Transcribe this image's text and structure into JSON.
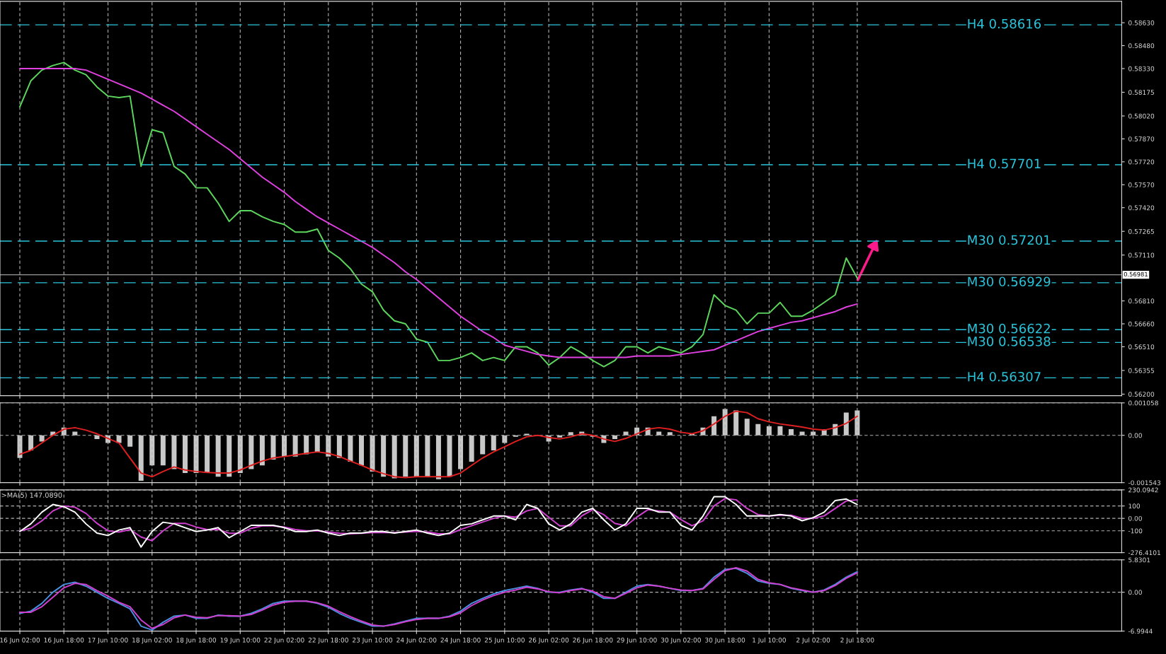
{
  "chart_data": [
    {
      "type": "line",
      "categories": [
        null,
        null,
        null,
        null,
        null,
        null,
        null,
        null,
        null,
        null,
        null,
        null,
        null,
        null,
        null,
        null,
        null,
        null,
        null,
        null,
        null,
        null,
        null,
        null,
        null,
        null,
        null,
        null,
        null,
        null,
        null,
        null,
        null,
        null,
        null,
        null,
        null,
        null,
        null,
        null,
        null,
        null,
        null,
        null,
        null,
        null,
        null,
        null,
        null,
        null,
        null,
        null,
        null,
        null,
        null,
        null,
        null,
        null,
        null,
        null,
        null,
        null,
        null,
        null,
        null,
        null,
        null,
        null,
        null,
        null,
        null,
        null,
        null,
        null,
        null,
        null,
        null
      ],
      "series": [
        {
          "color": "#5cd65c",
          "values": [
            0.5808,
            0.5825,
            0.5832,
            0.5835,
            0.5837,
            0.5832,
            0.5829,
            0.5821,
            0.5815,
            0.5814,
            0.5815,
            0.5769,
            0.5793,
            0.5791,
            0.5769,
            0.5764,
            0.5755,
            0.5755,
            0.5745,
            0.5733,
            0.574,
            0.574,
            0.5736,
            0.5733,
            0.5731,
            0.5726,
            0.5726,
            0.5728,
            0.5714,
            0.5709,
            0.5702,
            0.5692,
            0.5687,
            0.5675,
            0.5668,
            0.5666,
            0.5656,
            0.5654,
            0.5642,
            0.5642,
            0.5644,
            0.5647,
            0.5642,
            0.5644,
            0.5642,
            0.5651,
            0.5651,
            0.5647,
            0.5639,
            0.5644,
            0.5651,
            0.5647,
            0.5642,
            0.5638,
            0.5642,
            0.5651,
            0.5651,
            0.5647,
            0.5651,
            0.5649,
            0.5647,
            0.5651,
            0.5659,
            0.5685,
            0.5678,
            0.5675,
            0.5666,
            0.5673,
            0.5673,
            0.568,
            0.5671,
            0.5671,
            0.5675,
            0.568,
            0.5685,
            0.5709,
            0.5696
          ]
        },
        {
          "color": "#e040e0",
          "values": [
            0.5833,
            0.5833,
            0.5833,
            0.5833,
            0.5833,
            0.5833,
            0.5832,
            0.5829,
            0.5826,
            0.5823,
            0.582,
            0.5817,
            0.5813,
            0.5809,
            0.5805,
            0.58,
            0.5795,
            0.579,
            0.5785,
            0.578,
            0.5774,
            0.5768,
            0.5762,
            0.5757,
            0.5752,
            0.5746,
            0.5741,
            0.5736,
            0.5732,
            0.5728,
            0.5724,
            0.572,
            0.5716,
            0.5711,
            0.5706,
            0.57,
            0.5695,
            0.5689,
            0.5683,
            0.5677,
            0.5671,
            0.5666,
            0.5661,
            0.5657,
            0.5652,
            0.565,
            0.5648,
            0.5646,
            0.5645,
            0.5644,
            0.5644,
            0.5644,
            0.5644,
            0.5644,
            0.5644,
            0.5644,
            0.5645,
            0.5645,
            0.5645,
            0.5645,
            0.5646,
            0.5647,
            0.5648,
            0.5649,
            0.5652,
            0.5655,
            0.5658,
            0.5661,
            0.5663,
            0.5665,
            0.5667,
            0.5668,
            0.567,
            0.5672,
            0.5674,
            0.5677,
            0.5679
          ]
        }
      ],
      "ylim": [
        0.5619,
        0.5877
      ],
      "yticks": [
        {
          "value": 0.5863,
          "label": "0.58630"
        },
        {
          "value": 0.5848,
          "label": "0.58480"
        },
        {
          "value": 0.5833,
          "label": "0.58330"
        },
        {
          "value": 0.58175,
          "label": "0.58175"
        },
        {
          "value": 0.5802,
          "label": "0.58020"
        },
        {
          "value": 0.5787,
          "label": "0.57870"
        },
        {
          "value": 0.5772,
          "label": "0.57720"
        },
        {
          "value": 0.5757,
          "label": "0.57570"
        },
        {
          "value": 0.5742,
          "label": "0.57420"
        },
        {
          "value": 0.57265,
          "label": "0.57265"
        },
        {
          "value": 0.5711,
          "label": "0.57110"
        },
        {
          "value": 0.5681,
          "label": "0.56810"
        },
        {
          "value": 0.5666,
          "label": "0.56660"
        },
        {
          "value": 0.5651,
          "label": "0.56510"
        },
        {
          "value": 0.56355,
          "label": "0.56355"
        },
        {
          "value": 0.562,
          "label": "0.56200"
        }
      ],
      "ref_lines": [
        {
          "axis": "y",
          "value": 0.58616,
          "label": "H4 0.58616",
          "color": "#29c5dc",
          "line_style": "dashed"
        },
        {
          "axis": "y",
          "value": 0.57701,
          "label": "H4 0.57701",
          "color": "#29c5dc",
          "line_style": "dashed"
        },
        {
          "axis": "y",
          "value": 0.57201,
          "label": "M30 0.57201",
          "color": "#29c5dc",
          "line_style": "dashed"
        },
        {
          "axis": "y",
          "value": 0.56929,
          "label": "M30 0.56929",
          "color": "#29c5dc",
          "line_style": "dashed"
        },
        {
          "axis": "y",
          "value": 0.56622,
          "label": "M30 0.56622",
          "color": "#29c5dc",
          "line_style": "dashed"
        },
        {
          "axis": "y",
          "value": 0.56538,
          "label": "M30 0.56538",
          "color": "#29c5dc",
          "line_style": "dashed"
        },
        {
          "axis": "y",
          "value": 0.56307,
          "label": "H4 0.56307",
          "color": "#29c5dc",
          "line_style": "dashed"
        },
        {
          "axis": "y",
          "value": 0.56981,
          "label": "0.56981",
          "color": "#9a9a9a",
          "line_style": "solid"
        }
      ],
      "grid": "x",
      "tick_labels": "y"
    },
    {
      "type": "line",
      "categories": [
        null,
        null,
        null,
        null,
        null,
        null,
        null,
        null,
        null,
        null,
        null,
        null,
        null,
        null,
        null,
        null,
        null,
        null,
        null,
        null,
        null,
        null,
        null,
        null,
        null,
        null,
        null,
        null,
        null,
        null,
        null,
        null,
        null,
        null,
        null,
        null,
        null,
        null,
        null,
        null,
        null,
        null,
        null,
        null,
        null,
        null,
        null,
        null,
        null,
        null,
        null,
        null,
        null,
        null,
        null,
        null,
        null,
        null,
        null,
        null,
        null,
        null,
        null,
        null,
        null,
        null,
        null,
        null,
        null,
        null,
        null,
        null,
        null,
        null,
        null,
        null,
        null
      ],
      "series": [
        {
          "type": "bar",
          "color": "#c8c8c8",
          "values": [
            -0.00074,
            -0.00049,
            -0.0002,
            0.00012,
            0.00025,
            0.00012,
            0,
            -0.00012,
            -0.00025,
            -0.00025,
            -0.00037,
            -0.00148,
            -0.00098,
            -0.00098,
            -0.0011,
            -0.00123,
            -0.00123,
            -0.00123,
            -0.00135,
            -0.00135,
            -0.00123,
            -0.0011,
            -0.00098,
            -0.00079,
            -0.00069,
            -0.00069,
            -0.00062,
            -0.00054,
            -0.00069,
            -0.00074,
            -0.00086,
            -0.00098,
            -0.00118,
            -0.00135,
            -0.0014,
            -0.00135,
            -0.00135,
            -0.00135,
            -0.00143,
            -0.00135,
            -0.0011,
            -0.00086,
            -0.00062,
            -0.00049,
            -0.00025,
            -5e-05,
            5e-05,
            null,
            -0.0002,
            -7e-05,
            0.0001,
            0.00012,
            -5e-05,
            -0.00025,
            -0.00012,
            0.00012,
            0.00025,
            0.00025,
            0.00012,
            0.0001,
            0,
            5e-05,
            0.00025,
            0.00062,
            0.00086,
            0.00081,
            0.00054,
            0.00037,
            0.0003,
            0.0003,
            0.0002,
            0.00012,
            0.00012,
            0.0002,
            0.00037,
            0.00074,
            0.00081
          ]
        },
        {
          "type": "line",
          "color": "#e02020",
          "values": [
            -0.00062,
            -0.00049,
            -0.00025,
            0,
            0.0002,
            0.00025,
            0.00017,
            5e-05,
            -0.0001,
            -0.00025,
            -0.00074,
            -0.00123,
            -0.00135,
            -0.00118,
            -0.00103,
            -0.00113,
            -0.00118,
            -0.00121,
            -0.00123,
            -0.00123,
            -0.00113,
            -0.00098,
            -0.00084,
            -0.00074,
            -0.00069,
            -0.00064,
            -0.00059,
            -0.00054,
            -0.00059,
            -0.00069,
            -0.00084,
            -0.00098,
            -0.00113,
            -0.00125,
            -0.00135,
            -0.00138,
            -0.00135,
            -0.00135,
            -0.00135,
            -0.00135,
            -0.00123,
            -0.00098,
            -0.00074,
            -0.00054,
            -0.00037,
            -0.0002,
            -5e-05,
            0,
            -7e-05,
            -0.00012,
            -5e-05,
            5e-05,
            0,
            -0.00012,
            -0.0002,
            -0.0001,
            5e-05,
            0.0002,
            0.00025,
            0.0002,
            0.0001,
            5e-05,
            0.00015,
            0.00037,
            0.00062,
            0.00079,
            0.00074,
            0.00054,
            0.00044,
            0.00037,
            0.00032,
            0.00027,
            0.0002,
            0.00017,
            0.00025,
            0.00039,
            0.00062
          ]
        }
      ],
      "ylim": [
        -0.001543,
        0.001058
      ],
      "yticks": [
        {
          "value": 0.001058,
          "label": "0.001058"
        },
        {
          "value": 0,
          "label": "0.00"
        },
        {
          "value": -0.001543,
          "label": "-0.001543"
        }
      ],
      "grid": true,
      "tick_labels": "y"
    },
    {
      "type": "line",
      "categories": [
        null,
        null,
        null,
        null,
        null,
        null,
        null,
        null,
        null,
        null,
        null,
        null,
        null,
        null,
        null,
        null,
        null,
        null,
        null,
        null,
        null,
        null,
        null,
        null,
        null,
        null,
        null,
        null,
        null,
        null,
        null,
        null,
        null,
        null,
        null,
        null,
        null,
        null,
        null,
        null,
        null,
        null,
        null,
        null,
        null,
        null,
        null,
        null,
        null,
        null,
        null,
        null,
        null,
        null,
        null,
        null,
        null,
        null,
        null,
        null,
        null,
        null,
        null,
        null,
        null,
        null,
        null,
        null,
        null,
        null,
        null,
        null,
        null,
        null,
        null,
        null,
        null
      ],
      "series": [
        {
          "color": "#d040d0",
          "values": [
            -100,
            -80,
            -20,
            60,
            100,
            90,
            40,
            -40,
            -100,
            -110,
            -90,
            -150,
            -180,
            -100,
            -40,
            -40,
            -70,
            -90,
            -90,
            -120,
            -120,
            -80,
            -60,
            -60,
            -70,
            -90,
            -100,
            -100,
            -110,
            -120,
            -125,
            -120,
            -115,
            -115,
            -115,
            -110,
            -105,
            -110,
            -125,
            -125,
            -90,
            -60,
            -30,
            0,
            20,
            10,
            60,
            80,
            10,
            -60,
            -60,
            20,
            70,
            30,
            -40,
            -60,
            10,
            70,
            60,
            50,
            -10,
            -60,
            -20,
            100,
            160,
            150,
            80,
            30,
            20,
            25,
            25,
            0,
            0,
            20,
            80,
            140,
            150
          ]
        },
        {
          "color": "#ffffff",
          "values": [
            -106,
            -44,
            50,
            112,
            94,
            50,
            -44,
            -119,
            -138,
            -94,
            -75,
            -231,
            -106,
            -31,
            -44,
            -75,
            -106,
            -94,
            -75,
            -156,
            -106,
            -56,
            -56,
            -56,
            -75,
            -106,
            -106,
            -94,
            -119,
            -138,
            -119,
            -119,
            -106,
            -106,
            -119,
            -106,
            -94,
            -119,
            -138,
            -119,
            -56,
            -44,
            -12,
            19,
            19,
            -12,
            112,
            81,
            -44,
            -94,
            -44,
            50,
            81,
            -12,
            -94,
            -44,
            81,
            81,
            50,
            50,
            -56,
            -94,
            19,
            175,
            175,
            112,
            19,
            19,
            19,
            31,
            19,
            -19,
            6,
            50,
            144,
            156,
            112
          ]
        }
      ],
      "ylim": [
        -276.4101,
        230.0942
      ],
      "yticks": [
        230.0942,
        100,
        {
          "value": 0,
          "label": "0.00"
        },
        -100,
        -276.4101
      ],
      "annotations": [
        ">MA(5) 147.0890"
      ],
      "grid": true,
      "tick_labels": "y"
    },
    {
      "type": "line",
      "categories": [
        "16 Jun 02:00",
        null,
        null,
        null,
        "16 Jun 18:00",
        null,
        null,
        null,
        "17 Jun 10:00",
        null,
        null,
        null,
        "18 Jun 02:00",
        null,
        null,
        null,
        "18 Jun 18:00",
        null,
        null,
        null,
        "19 Jun 10:00",
        null,
        null,
        null,
        "22 Jun 02:00",
        null,
        null,
        null,
        "22 Jun 18:00",
        null,
        null,
        null,
        "23 Jun 10:00",
        null,
        null,
        null,
        "24 Jun 02:00",
        null,
        null,
        null,
        "24 Jun 18:00",
        null,
        null,
        null,
        "25 Jun 10:00",
        null,
        null,
        null,
        "26 Jun 02:00",
        null,
        null,
        null,
        "26 Jun 18:00",
        null,
        null,
        null,
        "29 Jun 10:00",
        null,
        null,
        null,
        "30 Jun 02:00",
        null,
        null,
        null,
        "30 Jun 18:00",
        null,
        null,
        null,
        "1 Jul 10:00",
        null,
        null,
        null,
        "2 Jul 02:00",
        null,
        null,
        null,
        "2 Jul 18:00"
      ],
      "series": [
        {
          "color": "#4a90e0",
          "values": [
            -3.8,
            -3.4,
            -2.0,
            0,
            1.4,
            1.8,
            1.1,
            0,
            -1.1,
            -2.0,
            -3.0,
            -6.1,
            -6.8,
            -5.4,
            -4.3,
            -4.1,
            -4.7,
            -4.7,
            -4.1,
            -4.3,
            -4.3,
            -3.8,
            -3.0,
            -2.0,
            -1.6,
            -1.6,
            -1.6,
            -2.0,
            -2.7,
            -3.8,
            -4.7,
            -5.4,
            -6.1,
            -6.1,
            -5.7,
            -5.2,
            -4.7,
            -4.7,
            -4.7,
            -4.3,
            -3.4,
            -2.0,
            -1.1,
            -0.3,
            0.3,
            0.7,
            1.1,
            0.7,
            0,
            0,
            0.4,
            0.7,
            0,
            -1.1,
            -1.1,
            0,
            1.1,
            1.4,
            1.1,
            0.7,
            0.3,
            0.3,
            0.7,
            2.7,
            4.1,
            4.3,
            3.4,
            2.0,
            1.6,
            1.4,
            0.7,
            0.3,
            0,
            0.4,
            1.4,
            2.7,
            3.7
          ]
        },
        {
          "color": "#d040d0",
          "values": [
            -3.6,
            -3.6,
            -2.6,
            -0.9,
            0.8,
            1.6,
            1.4,
            0.3,
            -0.7,
            -1.8,
            -2.6,
            -5.0,
            -6.5,
            -5.8,
            -4.6,
            -4.1,
            -4.5,
            -4.6,
            -4.2,
            -4.2,
            -4.3,
            -4.0,
            -3.2,
            -2.3,
            -1.8,
            -1.6,
            -1.6,
            -1.9,
            -2.5,
            -3.5,
            -4.4,
            -5.2,
            -5.9,
            -6.1,
            -5.8,
            -5.3,
            -4.9,
            -4.7,
            -4.7,
            -4.4,
            -3.7,
            -2.4,
            -1.4,
            -0.6,
            0,
            0.4,
            0.9,
            0.6,
            0.1,
            -0.1,
            0.3,
            0.6,
            0.2,
            -0.8,
            -1.1,
            -0.2,
            0.8,
            1.3,
            1.1,
            0.7,
            0.4,
            0.3,
            0.6,
            2.3,
            3.9,
            4.4,
            3.8,
            2.3,
            1.7,
            1.4,
            0.8,
            0.4,
            0,
            0.3,
            1.2,
            2.5,
            3.5
          ]
        }
      ],
      "ylim": [
        -6.9944,
        5.8301
      ],
      "yticks": [
        5.8301,
        {
          "value": 0,
          "label": "0.00"
        },
        -6.9944
      ],
      "grid": true
    }
  ]
}
